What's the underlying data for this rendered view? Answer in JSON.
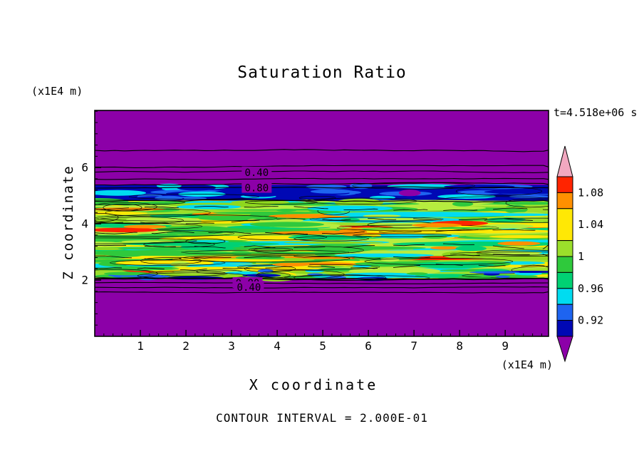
{
  "chart_data": {
    "type": "heatmap",
    "subtype": "filled-contour",
    "title": "Saturation Ratio",
    "xlabel": "X coordinate",
    "ylabel": "Z coordinate",
    "x_unit": "(x1E4 m)",
    "y_unit": "(x1E4 m)",
    "timestamp": "t=4.518e+06 s",
    "footer": "CONTOUR INTERVAL = 2.000E-01",
    "contour_interval": 0.2,
    "xlim": [
      0,
      9.95
    ],
    "ylim": [
      0,
      8.03
    ],
    "x_ticks": [
      1,
      2,
      3,
      4,
      5,
      6,
      7,
      8,
      9
    ],
    "x_minor_step": 0.2,
    "y_ticks": [
      2,
      4,
      6
    ],
    "y_minor_step": 0.4,
    "grid": false,
    "background_value_color": "#8C00A8",
    "texture_seed": 1337,
    "bands": [
      {
        "name": "inversion-layer",
        "z_from": 4.82,
        "z_to": 5.38,
        "base_color": "#0008B4",
        "streaks": {
          "count": 32,
          "palette": [
            {
              "c": "#1E64F0",
              "w": 0.45
            },
            {
              "c": "#00DCF0",
              "w": 0.25
            },
            {
              "c": "#0008B4",
              "w": 0.2
            },
            {
              "c": "#8C00A8",
              "w": 0.1
            }
          ],
          "rx": [
            14,
            70
          ],
          "ry": [
            2,
            5
          ]
        },
        "outlines": 5
      },
      {
        "name": "turbulent-layer",
        "z_from": 2.05,
        "z_to": 4.82,
        "base_color": "#9BDF2B",
        "streaks": {
          "count": 330,
          "palette": [
            {
              "c": "#2FC93C",
              "w": 0.27
            },
            {
              "c": "#B6EC3F",
              "w": 0.22
            },
            {
              "c": "#FFE805",
              "w": 0.17
            },
            {
              "c": "#00DCF0",
              "w": 0.12
            },
            {
              "c": "#00D173",
              "w": 0.08
            },
            {
              "c": "#8FD81F",
              "w": 0.08
            },
            {
              "c": "#FF9000",
              "w": 0.04
            },
            {
              "c": "#FF2400",
              "w": 0.02
            }
          ],
          "rx": [
            12,
            150
          ],
          "ry": [
            1.5,
            6
          ]
        },
        "outlines": 38
      },
      {
        "name": "turbulent-base-dark",
        "z_from": 2.02,
        "z_to": 2.32,
        "base_color": null,
        "streaks": {
          "count": 30,
          "palette": [
            {
              "c": "#0008B4",
              "w": 0.35
            },
            {
              "c": "#1E64F0",
              "w": 0.3
            },
            {
              "c": "#00DCF0",
              "w": 0.2
            },
            {
              "c": "#2FC93C",
              "w": 0.15
            }
          ],
          "rx": [
            8,
            55
          ],
          "ry": [
            1.5,
            3.5
          ]
        },
        "outlines": 6
      }
    ],
    "features": [
      {
        "x": 0.65,
        "z": 3.78,
        "rx": 48,
        "ry": 3.2,
        "color": "#FF2400"
      },
      {
        "x": 1.1,
        "z": 3.9,
        "rx": 30,
        "ry": 2.5,
        "color": "#FF9000"
      },
      {
        "x": 8.0,
        "z": 4.02,
        "rx": 40,
        "ry": 3.5,
        "color": "#FF2400"
      },
      {
        "x": 7.5,
        "z": 3.95,
        "rx": 35,
        "ry": 3.0,
        "color": "#FF9000"
      },
      {
        "x": 4.3,
        "z": 2.55,
        "rx": 26,
        "ry": 2.6,
        "color": "#FF9000"
      },
      {
        "x": 9.3,
        "z": 3.3,
        "rx": 30,
        "ry": 3.0,
        "color": "#FF9000"
      },
      {
        "x": 2.5,
        "z": 4.6,
        "rx": 45,
        "ry": 3.2,
        "color": "#00DCF0"
      },
      {
        "x": 5.6,
        "z": 4.55,
        "rx": 60,
        "ry": 4.0,
        "color": "#00DCF0"
      },
      {
        "x": 0.5,
        "z": 5.1,
        "rx": 40,
        "ry": 4.0,
        "color": "#00DCF0"
      },
      {
        "x": 5.2,
        "z": 5.15,
        "rx": 30,
        "ry": 3.0,
        "color": "#1E64F0"
      }
    ],
    "inner_contour_lines": [
      {
        "z": 2.45,
        "amp": 3.0,
        "dash": "38 22"
      },
      {
        "z": 2.85,
        "amp": 3.2,
        "dash": "52 18"
      },
      {
        "z": 3.25,
        "amp": 3.0,
        "dash": "44 26"
      },
      {
        "z": 3.65,
        "amp": 3.4,
        "dash": "60 20"
      },
      {
        "z": 4.05,
        "amp": 3.0,
        "dash": "40 24"
      },
      {
        "z": 4.5,
        "amp": 2.6,
        "dash": "48 22"
      }
    ],
    "contour_lines": [
      {
        "z": 6.62,
        "amp": 1.4
      },
      {
        "z": 6.02,
        "amp": 1.2
      },
      {
        "z": 5.83,
        "amp": 1.0,
        "label": "0.40",
        "label_x": 3.55
      },
      {
        "z": 5.58,
        "amp": 1.0
      },
      {
        "z": 5.4,
        "amp": 1.4
      },
      {
        "z": 5.28,
        "amp": 1.0,
        "label": "0.80",
        "label_x": 3.55
      },
      {
        "z": 4.8,
        "amp": 1.8
      },
      {
        "z": 2.04,
        "amp": 1.0,
        "width": 1.8
      },
      {
        "z": 1.9,
        "amp": 0.7,
        "label": "0.80",
        "label_x": 3.35
      },
      {
        "z": 1.75,
        "amp": 0.7,
        "label": "0.40",
        "label_x": 3.38
      },
      {
        "z": 1.58,
        "amp": 0.7
      }
    ],
    "colorbar": {
      "min": 0.9,
      "max": 1.1,
      "over_color": "#F2A8C0",
      "under_color": "#8C00A8",
      "segments": [
        {
          "from": 1.08,
          "to": 1.1,
          "color": "#FF2400"
        },
        {
          "from": 1.06,
          "to": 1.08,
          "color": "#FF9000"
        },
        {
          "from": 1.02,
          "to": 1.06,
          "color": "#FFE805"
        },
        {
          "from": 1.0,
          "to": 1.02,
          "color": "#9BDF2B"
        },
        {
          "from": 0.98,
          "to": 1.0,
          "color": "#2FC93C"
        },
        {
          "from": 0.96,
          "to": 0.98,
          "color": "#00D173"
        },
        {
          "from": 0.94,
          "to": 0.96,
          "color": "#00DCF0"
        },
        {
          "from": 0.92,
          "to": 0.94,
          "color": "#1E64F0"
        },
        {
          "from": 0.9,
          "to": 0.92,
          "color": "#0008B4"
        }
      ],
      "ticks": [
        {
          "value": 1.08,
          "label": "1.08"
        },
        {
          "value": 1.04,
          "label": "1.04"
        },
        {
          "value": 1.0,
          "label": "1"
        },
        {
          "value": 0.96,
          "label": "0.96"
        },
        {
          "value": 0.92,
          "label": "0.92"
        }
      ]
    }
  }
}
